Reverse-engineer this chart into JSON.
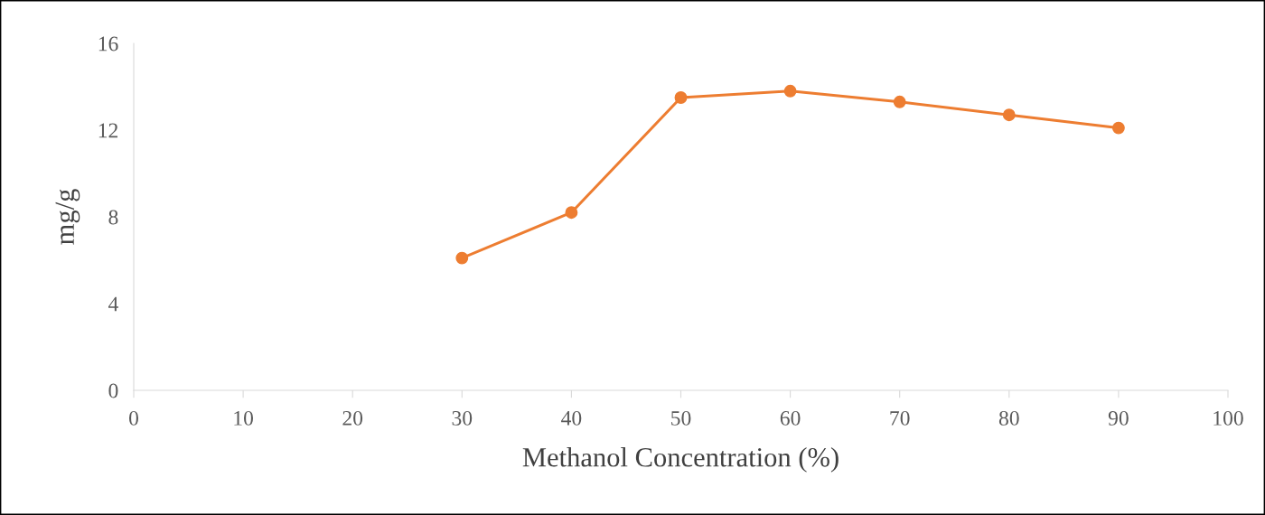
{
  "chart_data": {
    "type": "line",
    "xlabel": "Methanol Concentration (%)",
    "ylabel": "mg/g",
    "x": [
      30,
      40,
      50,
      60,
      70,
      80,
      90
    ],
    "series": [
      {
        "color": "#ed7d31",
        "values": [
          6.1,
          8.2,
          13.5,
          13.8,
          13.3,
          12.7,
          12.1
        ]
      }
    ],
    "xlim": [
      0,
      100
    ],
    "xticks": [
      0,
      10,
      20,
      30,
      40,
      50,
      60,
      70,
      80,
      90,
      100
    ],
    "ylim": [
      0,
      16
    ],
    "yticks": [
      0,
      4,
      8,
      12,
      16
    ],
    "grid": false,
    "legend": false,
    "marker": "circle",
    "line_style": "solid"
  }
}
